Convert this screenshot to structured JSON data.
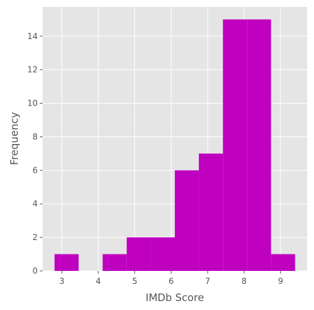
{
  "chart_data": {
    "type": "bar",
    "subtype": "histogram",
    "title": "",
    "xlabel": "IMDb Score",
    "ylabel": "Frequency",
    "bins": [
      {
        "start": 2.8,
        "end": 3.46,
        "count": 1
      },
      {
        "start": 3.46,
        "end": 4.12,
        "count": 0
      },
      {
        "start": 4.12,
        "end": 4.78,
        "count": 1
      },
      {
        "start": 4.78,
        "end": 5.44,
        "count": 2
      },
      {
        "start": 5.44,
        "end": 6.1,
        "count": 2
      },
      {
        "start": 6.1,
        "end": 6.76,
        "count": 6
      },
      {
        "start": 6.76,
        "end": 7.42,
        "count": 7
      },
      {
        "start": 7.42,
        "end": 8.08,
        "count": 15
      },
      {
        "start": 8.08,
        "end": 8.74,
        "count": 15
      },
      {
        "start": 8.74,
        "end": 9.4,
        "count": 1
      }
    ],
    "xlim": [
      2.47,
      9.73
    ],
    "ylim": [
      0,
      15.75
    ],
    "xticks": [
      3,
      4,
      5,
      6,
      7,
      8,
      9
    ],
    "yticks": [
      0,
      2,
      4,
      6,
      8,
      10,
      12,
      14
    ],
    "grid": true,
    "legend": "none",
    "colors": {
      "bar": "#BF00BF",
      "plot_background": "#E5E5E5",
      "grid": "#FFFFFF",
      "text": "#555555",
      "tick": "#555555"
    }
  }
}
